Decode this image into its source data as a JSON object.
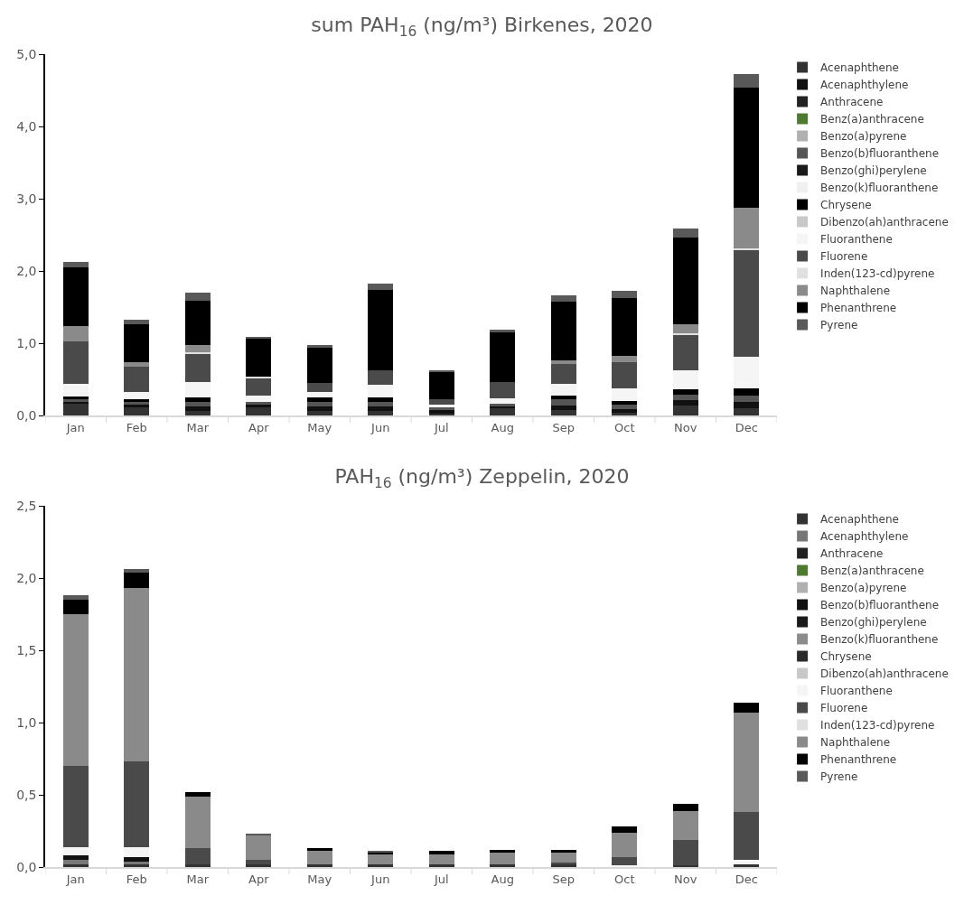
{
  "chart_data": [
    {
      "type": "bar",
      "title": "sum PAH$_{16}$ (ng/m³) Birkenes, 2020",
      "stacked": true,
      "legend": "right",
      "grid": false,
      "categories": [
        "Jan",
        "Feb",
        "Mar",
        "Apr",
        "May",
        "Jun",
        "Jul",
        "Aug",
        "Sep",
        "Oct",
        "Nov",
        "Dec"
      ],
      "ylim": [
        0,
        5
      ],
      "yticks": [
        {
          "value": 0,
          "label": "0,0"
        },
        {
          "value": 1,
          "label": "1,0"
        },
        {
          "value": 2,
          "label": "2,0"
        },
        {
          "value": 3,
          "label": "3,0"
        },
        {
          "value": 4,
          "label": "4,0"
        },
        {
          "value": 5,
          "label": "5,0"
        }
      ],
      "series": [
        {
          "name": "Acenaphthene",
          "color": "#333333",
          "values": [
            0.16,
            0.11,
            0.06,
            0.11,
            0.06,
            0.06,
            0.03,
            0.1,
            0.08,
            0.04,
            0.14,
            0.1
          ]
        },
        {
          "name": "Acenaphthylene",
          "color": "#111111",
          "values": [
            0.03,
            0.04,
            0.06,
            0.04,
            0.06,
            0.06,
            0.04,
            0.03,
            0.06,
            0.05,
            0.07,
            0.09
          ]
        },
        {
          "name": "Anthracene",
          "color": "#222222",
          "values": [
            null,
            null,
            null,
            null,
            null,
            null,
            null,
            null,
            null,
            null,
            null,
            null
          ]
        },
        {
          "name": "Benz(a)anthracene",
          "color": "#4e7a2e",
          "values": [
            null,
            null,
            null,
            null,
            null,
            null,
            null,
            null,
            null,
            null,
            null,
            null
          ]
        },
        {
          "name": "Benzo(a)pyrene",
          "color": "#b0b0b0",
          "values": [
            null,
            null,
            null,
            null,
            null,
            null,
            null,
            null,
            null,
            null,
            null,
            null
          ]
        },
        {
          "name": "Benzo(b)fluoranthene",
          "color": "#555555",
          "values": [
            0.04,
            0.04,
            0.07,
            0.04,
            0.07,
            0.07,
            0.04,
            0.03,
            0.08,
            0.06,
            0.08,
            0.09
          ]
        },
        {
          "name": "Benzo(ghi)perylene",
          "color": "#1a1a1a",
          "values": [
            null,
            null,
            null,
            null,
            null,
            null,
            null,
            null,
            null,
            null,
            null,
            null
          ]
        },
        {
          "name": "Benzo(k)fluoranthene",
          "color": "#f0f0f0",
          "values": [
            null,
            null,
            null,
            null,
            null,
            null,
            null,
            null,
            null,
            null,
            null,
            null
          ]
        },
        {
          "name": "Chrysene",
          "color": "#000000",
          "values": [
            0.03,
            0.04,
            0.06,
            null,
            0.06,
            0.06,
            null,
            null,
            0.06,
            0.05,
            0.07,
            0.09
          ]
        },
        {
          "name": "Dibenzo(ah)anthracene",
          "color": "#c8c8c8",
          "values": [
            null,
            null,
            null,
            null,
            null,
            null,
            null,
            null,
            null,
            null,
            null,
            null
          ]
        },
        {
          "name": "Fluoranthene",
          "color": "#f5f5f5",
          "values": [
            0.18,
            0.09,
            0.21,
            0.08,
            0.07,
            0.18,
            0.04,
            0.08,
            0.16,
            0.18,
            0.26,
            0.44
          ]
        },
        {
          "name": "Fluorene",
          "color": "#4a4a4a",
          "values": [
            0.58,
            0.35,
            0.4,
            0.24,
            0.13,
            0.2,
            0.07,
            0.22,
            0.27,
            0.36,
            0.5,
            1.48
          ]
        },
        {
          "name": "Inden(123-cd)pyrene",
          "color": "#e0e0e0",
          "values": [
            null,
            null,
            0.02,
            0.03,
            null,
            null,
            null,
            null,
            null,
            null,
            0.02,
            0.02
          ]
        },
        {
          "name": "Naphthalene",
          "color": "#8a8a8a",
          "values": [
            0.22,
            0.07,
            0.09,
            null,
            null,
            null,
            null,
            null,
            0.05,
            0.09,
            0.12,
            0.57
          ]
        },
        {
          "name": "Phenanthrene",
          "color": "#000000",
          "values": [
            0.81,
            0.52,
            0.62,
            0.52,
            0.49,
            1.11,
            0.38,
            0.69,
            0.81,
            0.8,
            1.2,
            1.66
          ]
        },
        {
          "name": "Pyrene",
          "color": "#595959",
          "values": [
            0.08,
            0.06,
            0.11,
            0.03,
            0.03,
            0.09,
            0.02,
            0.04,
            0.09,
            0.1,
            0.13,
            0.18
          ]
        }
      ]
    },
    {
      "type": "bar",
      "title": "PAH$_{16}$ (ng/m³) Zeppelin, 2020",
      "stacked": true,
      "legend": "right",
      "grid": false,
      "categories": [
        "Jan",
        "Feb",
        "Mar",
        "Apr",
        "May",
        "Jun",
        "Jul",
        "Aug",
        "Sep",
        "Oct",
        "Nov",
        "Dec"
      ],
      "ylim": [
        0,
        2.5
      ],
      "yticks": [
        {
          "value": 0,
          "label": "0,0"
        },
        {
          "value": 0.5,
          "label": "0,5"
        },
        {
          "value": 1,
          "label": "1,0"
        },
        {
          "value": 1.5,
          "label": "1,5"
        },
        {
          "value": 2,
          "label": "2,0"
        },
        {
          "value": 2.5,
          "label": "2,5"
        }
      ],
      "series": [
        {
          "name": "Acenaphthene",
          "color": "#333333",
          "values": [
            0.02,
            0.02,
            0.02,
            0.02,
            0.02,
            0.02,
            0.02,
            0.02,
            0.02,
            null,
            0.01,
            0.02
          ]
        },
        {
          "name": "Acenaphthylene",
          "color": "#777777",
          "values": [
            0.03,
            0.02,
            null,
            null,
            null,
            null,
            null,
            null,
            null,
            null,
            null,
            null
          ]
        },
        {
          "name": "Anthracene",
          "color": "#222222",
          "values": [
            null,
            null,
            null,
            null,
            null,
            null,
            null,
            null,
            null,
            null,
            null,
            null
          ]
        },
        {
          "name": "Benz(a)anthracene",
          "color": "#4e7a2e",
          "values": [
            null,
            null,
            null,
            null,
            null,
            null,
            null,
            null,
            null,
            null,
            null,
            null
          ]
        },
        {
          "name": "Benzo(a)pyrene",
          "color": "#b0b0b0",
          "values": [
            null,
            null,
            null,
            null,
            null,
            null,
            null,
            null,
            null,
            null,
            null,
            null
          ]
        },
        {
          "name": "Benzo(b)fluoranthene",
          "color": "#111111",
          "values": [
            0.03,
            0.03,
            null,
            null,
            null,
            null,
            null,
            null,
            null,
            null,
            null,
            null
          ]
        },
        {
          "name": "Benzo(ghi)perylene",
          "color": "#1a1a1a",
          "values": [
            null,
            null,
            null,
            null,
            null,
            null,
            null,
            null,
            null,
            null,
            null,
            null
          ]
        },
        {
          "name": "Benzo(k)fluoranthene",
          "color": "#8c8c8c",
          "values": [
            null,
            null,
            null,
            null,
            null,
            null,
            null,
            null,
            null,
            null,
            null,
            null
          ]
        },
        {
          "name": "Chrysene",
          "color": "#2a2a2a",
          "values": [
            null,
            null,
            null,
            null,
            null,
            null,
            null,
            null,
            null,
            null,
            null,
            null
          ]
        },
        {
          "name": "Dibenzo(ah)anthracene",
          "color": "#c8c8c8",
          "values": [
            null,
            null,
            null,
            null,
            null,
            null,
            null,
            null,
            null,
            null,
            null,
            null
          ]
        },
        {
          "name": "Fluoranthene",
          "color": "#f5f5f5",
          "values": [
            0.06,
            0.07,
            null,
            null,
            null,
            null,
            null,
            null,
            null,
            0.01,
            null,
            0.03
          ]
        },
        {
          "name": "Fluorene",
          "color": "#4a4a4a",
          "values": [
            0.56,
            0.59,
            0.11,
            0.03,
            null,
            null,
            null,
            null,
            0.01,
            0.06,
            0.18,
            0.33
          ]
        },
        {
          "name": "Inden(123-cd)pyrene",
          "color": "#e0e0e0",
          "values": [
            null,
            null,
            null,
            null,
            null,
            null,
            null,
            null,
            null,
            null,
            null,
            null
          ]
        },
        {
          "name": "Naphthalene",
          "color": "#8a8a8a",
          "values": [
            1.05,
            1.2,
            0.36,
            0.17,
            0.09,
            0.07,
            0.07,
            0.08,
            0.07,
            0.17,
            0.2,
            0.69
          ]
        },
        {
          "name": "Phenanthrene",
          "color": "#000000",
          "values": [
            0.1,
            0.11,
            0.03,
            null,
            0.02,
            0.01,
            0.02,
            0.02,
            0.02,
            0.04,
            0.05,
            0.07
          ]
        },
        {
          "name": "Pyrene",
          "color": "#595959",
          "values": [
            0.03,
            0.02,
            null,
            0.01,
            null,
            0.01,
            null,
            null,
            null,
            null,
            null,
            null
          ]
        }
      ]
    }
  ]
}
